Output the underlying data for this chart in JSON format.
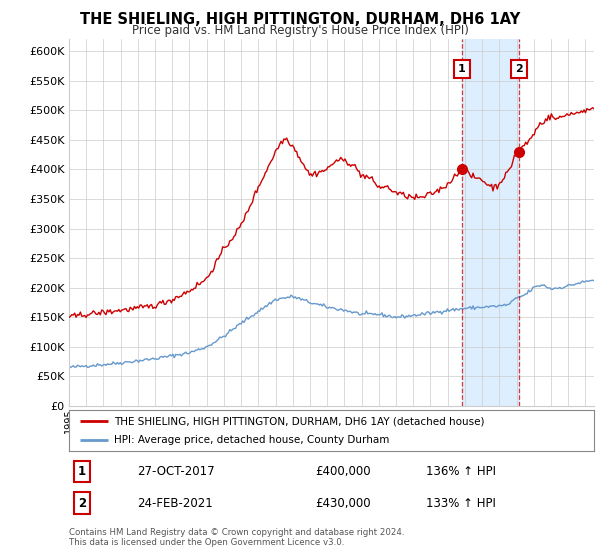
{
  "title": "THE SHIELING, HIGH PITTINGTON, DURHAM, DH6 1AY",
  "subtitle": "Price paid vs. HM Land Registry's House Price Index (HPI)",
  "legend_line1": "THE SHIELING, HIGH PITTINGTON, DURHAM, DH6 1AY (detached house)",
  "legend_line2": "HPI: Average price, detached house, County Durham",
  "annotation1_label": "1",
  "annotation1_date": "27-OCT-2017",
  "annotation1_price": "£400,000",
  "annotation1_hpi": "136% ↑ HPI",
  "annotation2_label": "2",
  "annotation2_date": "24-FEB-2021",
  "annotation2_price": "£430,000",
  "annotation2_hpi": "133% ↑ HPI",
  "footer": "Contains HM Land Registry data © Crown copyright and database right 2024.\nThis data is licensed under the Open Government Licence v3.0.",
  "red_color": "#cc0000",
  "blue_color": "#6699cc",
  "background_color": "#ffffff",
  "grid_color": "#cccccc",
  "shade_color": "#ddeeff",
  "ylim_max": 620000,
  "yticks": [
    0,
    50000,
    100000,
    150000,
    200000,
    250000,
    300000,
    350000,
    400000,
    450000,
    500000,
    550000,
    600000
  ],
  "marker1_year": 2017.82,
  "marker1_value": 400000,
  "marker2_year": 2021.15,
  "marker2_value": 430000,
  "vline1_year": 2017.82,
  "vline2_year": 2021.15,
  "xmin": 1995,
  "xmax": 2025.5
}
